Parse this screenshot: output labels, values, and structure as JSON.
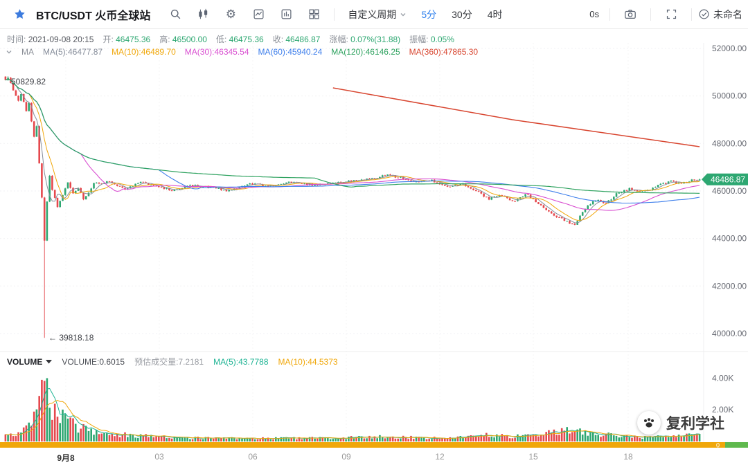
{
  "toolbar": {
    "symbol": "BTC/USDT 火币全球站",
    "custom_period_label": "自定义周期",
    "periods": [
      "5分",
      "30分",
      "4时"
    ],
    "active_period": "5分",
    "countdown": "0s",
    "layout_name": "未命名",
    "icons": [
      "favorite-star",
      "search",
      "kline-style",
      "settings-gear",
      "indicator-chart",
      "compare-symbol",
      "multi-layout",
      "camera-snapshot",
      "fullscreen",
      "check-circle"
    ]
  },
  "info_bar": {
    "time_label": "时间:",
    "time_value": "2021-09-08 20:15",
    "fields": [
      {
        "label": "开:",
        "value": "46475.36"
      },
      {
        "label": "高:",
        "value": "46500.00"
      },
      {
        "label": "低:",
        "value": "46475.36"
      },
      {
        "label": "收:",
        "value": "46486.87"
      },
      {
        "label": "涨幅:",
        "value": "0.07%(31.88)"
      },
      {
        "label": "振幅:",
        "value": "0.05%"
      }
    ]
  },
  "ma_legend": {
    "title": "MA",
    "items": [
      {
        "label": "MA(5):46477.87",
        "key": "ma5"
      },
      {
        "label": "MA(10):46489.70",
        "key": "ma10"
      },
      {
        "label": "MA(30):46345.54",
        "key": "ma30"
      },
      {
        "label": "MA(60):45940.24",
        "key": "ma60"
      },
      {
        "label": "MA(120):46146.25",
        "key": "ma120"
      },
      {
        "label": "MA(360):47865.30",
        "key": "ma360"
      }
    ]
  },
  "volume_legend": {
    "name": "VOLUME",
    "value_label": "VOLUME:0.6015",
    "estimate_label": "预估成交量:7.2181",
    "ma5_label": "MA(5):43.7788",
    "ma10_label": "MA(10):44.5373"
  },
  "axis": {
    "price_ticks": [
      {
        "label": "52000.00",
        "price": 52000
      },
      {
        "label": "50000.00",
        "price": 50000
      },
      {
        "label": "48000.00",
        "price": 48000
      },
      {
        "label": "46000.00",
        "price": 46000
      },
      {
        "label": "44000.00",
        "price": 44000
      },
      {
        "label": "42000.00",
        "price": 42000
      },
      {
        "label": "40000.00",
        "price": 40000
      }
    ],
    "volume_ticks": [
      {
        "label": "4.00K",
        "value": 4
      },
      {
        "label": "2.00K",
        "value": 2
      }
    ],
    "x_ticks": [
      {
        "label": "9月8",
        "pos": 95
      },
      {
        "label": "03",
        "pos": 230
      },
      {
        "label": "06",
        "pos": 365
      },
      {
        "label": "09",
        "pos": 500
      },
      {
        "label": "12",
        "pos": 635
      },
      {
        "label": "15",
        "pos": 770
      },
      {
        "label": "18",
        "pos": 907
      }
    ],
    "price_tag": "46486.87"
  },
  "annotations": {
    "session_high": "50829.82",
    "session_low": "← 39818.18",
    "scrollbar_zero": "0"
  },
  "watermark": {
    "text": "复利学社"
  },
  "chart_data": {
    "type": "candlestick",
    "symbol": "BTC/USDT",
    "interval": "5分",
    "last_candle": {
      "time": "2021-09-08 20:15",
      "open": 46475.36,
      "high": 46500.0,
      "low": 46475.36,
      "close": 46486.87,
      "change": "0.07%(31.88)",
      "amplitude": "0.05%"
    },
    "session_high": 50829.82,
    "session_low": 39818.18,
    "ma_values": {
      "ma5": 46477.87,
      "ma10": 46489.7,
      "ma30": 46345.54,
      "ma60": 45940.24,
      "ma120": 46146.25,
      "ma360": 47865.3
    },
    "volume_values": {
      "current": 0.6015,
      "estimated": 7.2181,
      "ma5": 43.7788,
      "ma10": 44.5373
    },
    "price_axis_max": 52000,
    "price_axis_min": 40000,
    "candle_count": 268,
    "price_anchors": [
      [
        0,
        50650
      ],
      [
        1,
        50780
      ],
      [
        3,
        50250
      ],
      [
        5,
        49780
      ],
      [
        6,
        50050
      ],
      [
        8,
        49400
      ],
      [
        9,
        49700
      ],
      [
        10,
        48900
      ],
      [
        11,
        48300
      ],
      [
        12,
        48700
      ],
      [
        13,
        47200
      ],
      [
        14,
        45700
      ],
      [
        15,
        43900
      ],
      [
        16,
        45600
      ],
      [
        17,
        46600
      ],
      [
        18,
        46050
      ],
      [
        20,
        45300
      ],
      [
        22,
        45850
      ],
      [
        24,
        46350
      ],
      [
        26,
        45900
      ],
      [
        28,
        46150
      ],
      [
        30,
        45650
      ],
      [
        34,
        46300
      ],
      [
        40,
        46400
      ],
      [
        46,
        46100
      ],
      [
        52,
        46350
      ],
      [
        58,
        46250
      ],
      [
        64,
        46000
      ],
      [
        70,
        46250
      ],
      [
        78,
        46150
      ],
      [
        86,
        46000
      ],
      [
        94,
        46300
      ],
      [
        102,
        46200
      ],
      [
        110,
        46380
      ],
      [
        118,
        46260
      ],
      [
        126,
        46350
      ],
      [
        134,
        46420
      ],
      [
        141,
        46520
      ],
      [
        147,
        46680
      ],
      [
        152,
        46560
      ],
      [
        158,
        46360
      ],
      [
        164,
        46440
      ],
      [
        170,
        46180
      ],
      [
        176,
        46300
      ],
      [
        182,
        45950
      ],
      [
        186,
        45650
      ],
      [
        190,
        45820
      ],
      [
        196,
        45560
      ],
      [
        200,
        45880
      ],
      [
        205,
        45480
      ],
      [
        210,
        45050
      ],
      [
        215,
        44750
      ],
      [
        219,
        44590
      ],
      [
        223,
        45280
      ],
      [
        227,
        45620
      ],
      [
        231,
        45480
      ],
      [
        235,
        45880
      ],
      [
        240,
        46080
      ],
      [
        246,
        45980
      ],
      [
        251,
        46220
      ],
      [
        256,
        46400
      ],
      [
        260,
        46300
      ],
      [
        264,
        46450
      ],
      [
        267,
        46486.87
      ]
    ],
    "volume_anchors": [
      [
        0,
        0.35
      ],
      [
        6,
        0.6
      ],
      [
        10,
        1.1
      ],
      [
        13,
        2.6
      ],
      [
        14,
        4.4
      ],
      [
        15,
        4.1
      ],
      [
        16,
        3.2
      ],
      [
        18,
        2.4
      ],
      [
        20,
        1.9
      ],
      [
        24,
        1.4
      ],
      [
        28,
        1.0
      ],
      [
        34,
        0.7
      ],
      [
        42,
        0.5
      ],
      [
        55,
        0.35
      ],
      [
        70,
        0.25
      ],
      [
        90,
        0.2
      ],
      [
        110,
        0.22
      ],
      [
        130,
        0.25
      ],
      [
        147,
        0.35
      ],
      [
        160,
        0.25
      ],
      [
        176,
        0.3
      ],
      [
        186,
        0.45
      ],
      [
        196,
        0.35
      ],
      [
        205,
        0.5
      ],
      [
        212,
        0.65
      ],
      [
        219,
        0.8
      ],
      [
        226,
        0.5
      ],
      [
        235,
        0.4
      ],
      [
        246,
        0.3
      ],
      [
        254,
        0.35
      ],
      [
        262,
        0.45
      ],
      [
        267,
        0.6
      ]
    ],
    "overrides": {
      "high_idx": 1,
      "high_value": 50829.82,
      "low_idx": 15,
      "low_value": 39818.18,
      "last_close": 46486.87
    },
    "ma360_anchors": [
      [
        126,
        50340
      ],
      [
        195,
        49000
      ],
      [
        267,
        47865.3
      ]
    ],
    "colors": {
      "up": "#2DA771",
      "down": "#E5484D",
      "accent_blue": "#2F80ED",
      "ma5": "#858C99",
      "ma10": "#F0A70A",
      "ma30": "#D94FD1",
      "ma60": "#3D7EEB",
      "ma120": "#2EA25F",
      "ma360": "#D8452F",
      "vol_ma5": "#1CB393",
      "vol_ma10": "#F0A70A",
      "scrollbar": "#F0A70A",
      "scrollbar_end": "#5FB94E"
    }
  }
}
